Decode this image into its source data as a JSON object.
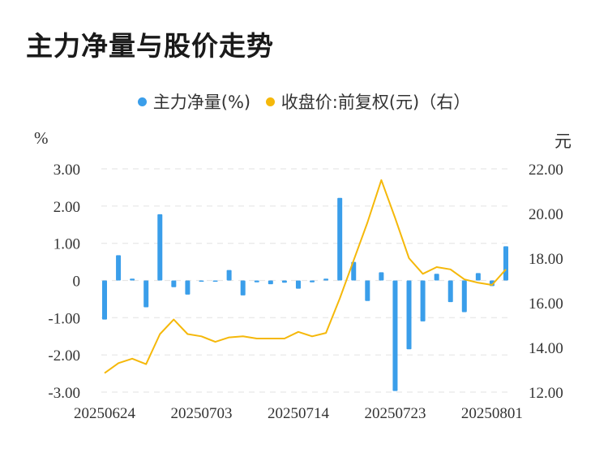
{
  "title": "主力净量与股价走势",
  "legend": {
    "item1": "主力净量(%)",
    "item2": "收盘价:前复权(元)（右）"
  },
  "units": {
    "left": "%",
    "right": "元"
  },
  "colors": {
    "bar": "#3a9eea",
    "line": "#f5b80a",
    "grid": "#e6e6e6"
  },
  "chart_data": {
    "type": "bar+line",
    "x_tick_labels": [
      "20250624",
      "20250703",
      "20250714",
      "20250723",
      "20250801"
    ],
    "left_axis": {
      "ylim": [
        -3,
        3
      ],
      "ticks": [
        "3.00",
        "2.00",
        "1.00",
        "0",
        "-1.00",
        "-2.00",
        "-3.00"
      ]
    },
    "right_axis": {
      "ylim": [
        12,
        22
      ],
      "ticks": [
        "22.00",
        "20.00",
        "18.00",
        "16.00",
        "14.00",
        "12.00"
      ]
    },
    "series": [
      {
        "name": "主力净量(%)",
        "type": "bar",
        "axis": "left",
        "values": [
          -1.05,
          0.68,
          0.05,
          -0.72,
          1.78,
          -0.18,
          -0.38,
          -0.03,
          -0.02,
          0.28,
          -0.4,
          -0.05,
          -0.1,
          -0.06,
          -0.22,
          -0.05,
          0.05,
          2.22,
          0.5,
          -0.55,
          0.22,
          -2.97,
          -1.85,
          -1.1,
          0.18,
          -0.58,
          -0.85,
          0.2,
          -0.15,
          0.92
        ]
      },
      {
        "name": "收盘价:前复权(元)（右）",
        "type": "line",
        "axis": "right",
        "values": [
          12.85,
          13.3,
          13.5,
          13.25,
          14.6,
          15.25,
          14.6,
          14.5,
          14.25,
          14.45,
          14.5,
          14.4,
          14.4,
          14.4,
          14.7,
          14.5,
          14.65,
          16.2,
          17.9,
          19.6,
          21.5,
          19.8,
          18.0,
          17.3,
          17.6,
          17.5,
          17.05,
          16.9,
          16.8,
          17.5
        ]
      }
    ]
  }
}
